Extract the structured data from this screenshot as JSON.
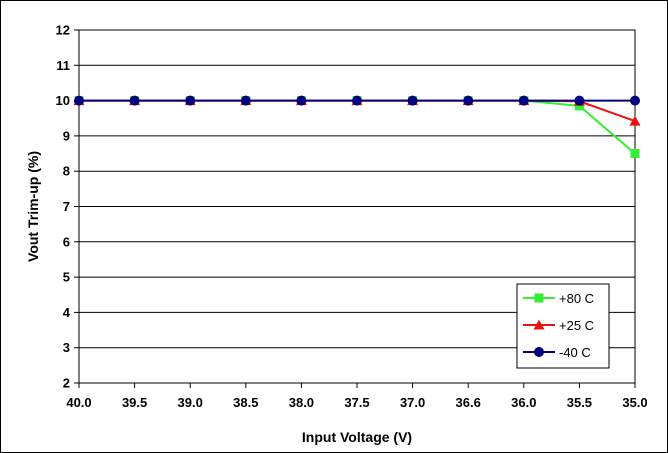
{
  "chart_data": {
    "type": "line",
    "categories": [
      "40.0",
      "39.5",
      "39.0",
      "38.5",
      "38.0",
      "37.5",
      "37.0",
      "36.6",
      "36.0",
      "35.5",
      "35.0"
    ],
    "xlabel": "Input Voltage (V)",
    "ylabel": "Vout Trim-up (%)",
    "ylim": [
      2,
      12
    ],
    "yticks": [
      "2",
      "3",
      "4",
      "5",
      "6",
      "7",
      "8",
      "9",
      "10",
      "11",
      "12"
    ],
    "grid": true,
    "legend_position": "bottom-right",
    "series": [
      {
        "name": "+80 C",
        "color": "#33ee33",
        "marker": "square",
        "values": [
          10,
          10,
          10,
          10,
          10,
          10,
          10,
          10,
          10,
          9.85,
          8.5
        ]
      },
      {
        "name": "+25 C",
        "color": "#ee1111",
        "marker": "triangle",
        "values": [
          10,
          10,
          10,
          10,
          10,
          10,
          10,
          10,
          10,
          9.98,
          9.42
        ]
      },
      {
        "name": "-40 C",
        "color": "#000080",
        "marker": "circle",
        "values": [
          10,
          10,
          10,
          10,
          10,
          10,
          10,
          10,
          10,
          10,
          10
        ]
      }
    ]
  }
}
